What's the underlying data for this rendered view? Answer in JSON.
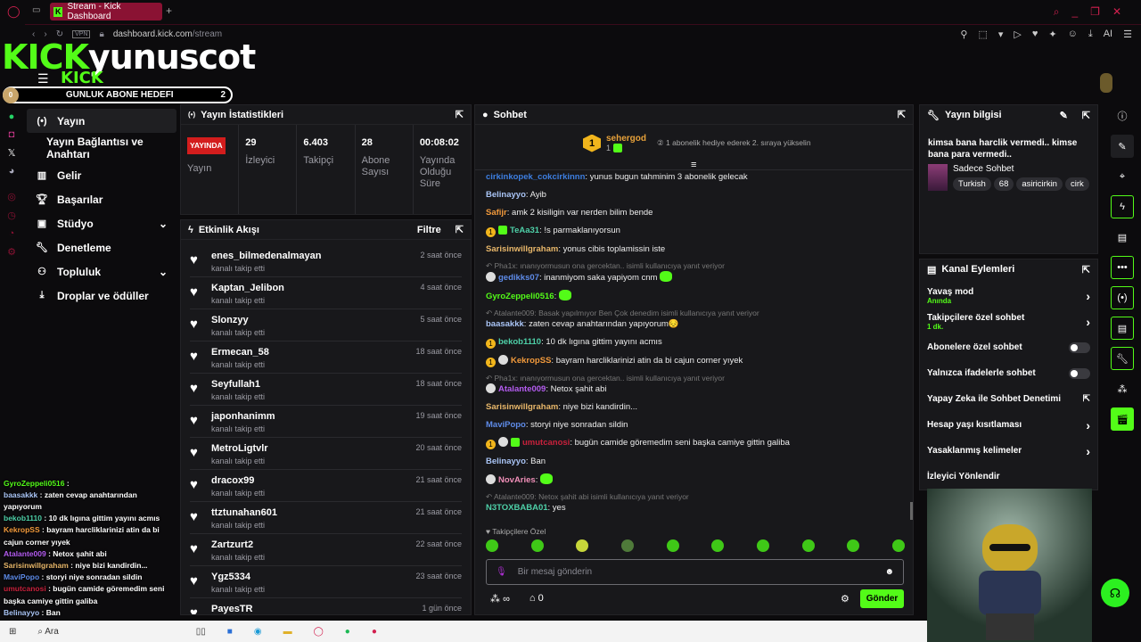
{
  "browser": {
    "tab_title": "Stream - Kick Dashboard",
    "vpn": "VPN",
    "url_host": "dashboard.kick.com",
    "url_path": "/stream",
    "ai_label": "AI"
  },
  "overlay": {
    "brand": "KICK",
    "channel": "yunuscot",
    "brand_small": "KICK",
    "goal_label": "GUNLUK ABONE HEDEFI",
    "goal_current": "0",
    "goal_target": "2",
    "goal_progress": 0
  },
  "sidebar": {
    "items": [
      {
        "label": "Yayın",
        "icon": "broadcast-icon"
      },
      {
        "label": "Yayın Bağlantısı ve Anahtarı"
      },
      {
        "label": "Gelir",
        "icon": "chart-icon"
      },
      {
        "label": "Başarılar",
        "icon": "trophy-icon"
      },
      {
        "label": "Stüdyo",
        "icon": "studio-icon",
        "expandable": true
      },
      {
        "label": "Denetleme",
        "icon": "wrench-icon"
      },
      {
        "label": "Topluluk",
        "icon": "community-icon",
        "expandable": true
      },
      {
        "label": "Droplar ve ödüller",
        "icon": "drops-icon"
      }
    ]
  },
  "stats": {
    "title": "Yayın İstatistikleri",
    "live_badge": "YAYINDA",
    "items": [
      {
        "value": "",
        "label": "Yayın"
      },
      {
        "value": "29",
        "label": "İzleyici"
      },
      {
        "value": "6.403",
        "label": "Takipçi"
      },
      {
        "value": "28",
        "label": "Abone Sayısı"
      },
      {
        "value": "00:08:02",
        "label": "Yayında Olduğu Süre"
      }
    ]
  },
  "feed": {
    "title": "Etkinlik Akışı",
    "filter": "Filtre",
    "action": "kanalı takip etti",
    "events": [
      {
        "user": "enes_bilmedenalmayan",
        "time": "2 saat önce"
      },
      {
        "user": "Kaptan_Jelibon",
        "time": "4 saat önce"
      },
      {
        "user": "Slonzyy",
        "time": "5 saat önce"
      },
      {
        "user": "Ermecan_58",
        "time": "18 saat önce"
      },
      {
        "user": "Seyfullah1",
        "time": "18 saat önce"
      },
      {
        "user": "japonhanimm",
        "time": "19 saat önce"
      },
      {
        "user": "MetroLigtvlr",
        "time": "20 saat önce"
      },
      {
        "user": "dracox99",
        "time": "21 saat önce"
      },
      {
        "user": "ttztunahan601",
        "time": "21 saat önce"
      },
      {
        "user": "Zartzurt2",
        "time": "22 saat önce"
      },
      {
        "user": "Ygz5334",
        "time": "23 saat önce"
      },
      {
        "user": "PayesTR",
        "time": "1 gün önce"
      }
    ]
  },
  "chat": {
    "title": "Sohbet",
    "top_gifter": {
      "rank": "1",
      "name": "sehergod",
      "count": "1"
    },
    "gift_prompt": "1 abonelik hediye ederek 2. sıraya yükselin",
    "messages": [
      {
        "user": "cirkinkopek_cokcirkinnn",
        "color": "#3d7ee0",
        "text": "yunus bugun tahminim 3 abonelik gelecak"
      },
      {
        "user": "Belinayyo",
        "color": "#a9c4f5",
        "text": "Ayib"
      },
      {
        "user": "Safijr",
        "color": "#f29a3c",
        "text": "amk 2 kisiligin var nerden bilim bende"
      },
      {
        "user": "TeAa31",
        "color": "#4ed0a8",
        "text": "!s parmaklanıyorsun",
        "badges": [
          "1",
          "sub"
        ]
      },
      {
        "user": "Sarisinwillgraham",
        "color": "#e8b76a",
        "text": "yonus cibis toplamissin iste"
      },
      {
        "reply": "Pha1x: ınanıyormusun ona gercektan.. isimli kullanıcıya yanıt veriyor",
        "user": "gedikks07",
        "color": "#5e8be8",
        "text": "inanmiyom saka yapiyom cnm",
        "badges": [
          "gift"
        ],
        "emote": true
      },
      {
        "user": "GyroZeppeli0516",
        "color": "#53fc18",
        "text": "",
        "emote": true
      },
      {
        "reply": "Atalante009: Basak yapılmıyor Ben Çok denedim isimli kullanıcıya yanıt veriyor",
        "user": "baasakkk",
        "color": "#a9c4f5",
        "text": "zaten cevap anahtarından yapıyorum😔"
      },
      {
        "user": "bekob1110",
        "color": "#4ed0a8",
        "text": "10 dk lıgına gittim yayını acmıs",
        "badges": [
          "1"
        ]
      },
      {
        "user": "KekropSS",
        "color": "#f29a3c",
        "text": "bayram harcliklarinizi atin da bi cajun corner yıyek",
        "badges": [
          "1",
          "gift"
        ]
      },
      {
        "reply": "Pha1x: ınanıyormusun ona gercektan.. isimli kullanıcıya yanıt veriyor",
        "user": "Atalante009",
        "color": "#b45cf0",
        "text": "Netox şahit abi",
        "badges": [
          "gift"
        ]
      },
      {
        "user": "Sarisinwillgraham",
        "color": "#e8b76a",
        "text": "niye bizi kandirdin..."
      },
      {
        "user": "MaviPopo",
        "color": "#5e8be8",
        "text": "storyi niye sonradan sildin"
      },
      {
        "user": "umutcanosi",
        "color": "#c8213c",
        "text": "bugün camide göremedim seni başka camiye gittin galiba",
        "badges": [
          "1",
          "gift",
          "sub"
        ]
      },
      {
        "user": "Belinayyo",
        "color": "#a9c4f5",
        "text": "Ban"
      },
      {
        "user": "NovAries",
        "color": "#f08fb8",
        "text": "",
        "badges": [
          "gift"
        ],
        "emote": true
      },
      {
        "reply": "Atalante009: Netox şahit abi isimli kullanıcıya yanıt veriyor",
        "user": "N3TOXBABA01",
        "color": "#4ed0a8",
        "text": "yes"
      }
    ],
    "followers_only_label": "Takipçilere Özel",
    "input_placeholder": "Bir mesaj gönderin",
    "points": "∞",
    "store_count": "0",
    "send_label": "Gönder"
  },
  "stream_info": {
    "title": "Yayın bilgisi",
    "stream_title": "kimsa bana harclik vermedi.. kimse bana para vermedi..",
    "category": "Sadece Sohbet",
    "tags": [
      "Turkish",
      "68",
      "asiricirkin",
      "cirk"
    ]
  },
  "channel_actions": {
    "title": "Kanal Eylemleri",
    "items": [
      {
        "label": "Yavaş mod",
        "sub": "Anında",
        "type": "chevron"
      },
      {
        "label": "Takipçilere özel sohbet",
        "sub": "1 dk.",
        "type": "chevron"
      },
      {
        "label": "Abonelere özel sohbet",
        "type": "toggle",
        "on": false
      },
      {
        "label": "Yalnızca ifadelerle sohbet",
        "type": "toggle",
        "on": false
      },
      {
        "label": "Yapay Zeka ile Sohbet Denetimi",
        "type": "external"
      },
      {
        "label": "Hesap yaşı kısıtlaması",
        "type": "chevron"
      },
      {
        "label": "Yasaklanmış kelimeler",
        "type": "chevron"
      },
      {
        "label": "İzleyici Yönlendir",
        "type": "none"
      }
    ]
  },
  "overlay_chat": [
    {
      "user": "GyroZeppeli0516",
      "color": "#53fc18",
      "text": ""
    },
    {
      "user": "baasakkk",
      "color": "#a9c4f5",
      "text": "zaten cevap anahtarından yapıyorum"
    },
    {
      "user": "bekob1110",
      "color": "#4ed0a8",
      "text": "10 dk lıgına gittim yayını acmıs"
    },
    {
      "user": "KekropSS",
      "color": "#f29a3c",
      "text": "bayram harcliklarinizi atin da bi cajun corner yıyek"
    },
    {
      "user": "Atalante009",
      "color": "#b45cf0",
      "text": "Netox şahit abi"
    },
    {
      "user": "Sarisinwillgraham",
      "color": "#e8b76a",
      "text": "niye bizi kandirdin..."
    },
    {
      "user": "MaviPopo",
      "color": "#5e8be8",
      "text": "storyi niye sonradan sildin"
    },
    {
      "user": "umutcanosi",
      "color": "#c8213c",
      "text": "bugün camide göremedim seni başka camiye gittin galiba"
    },
    {
      "user": "Belinayyo",
      "color": "#a9c4f5",
      "text": "Ban"
    }
  ],
  "taskbar": {
    "search": "Ara"
  },
  "colors": {
    "accent": "#53fc18",
    "live": "#d31d1d",
    "panel": "#18181b"
  }
}
